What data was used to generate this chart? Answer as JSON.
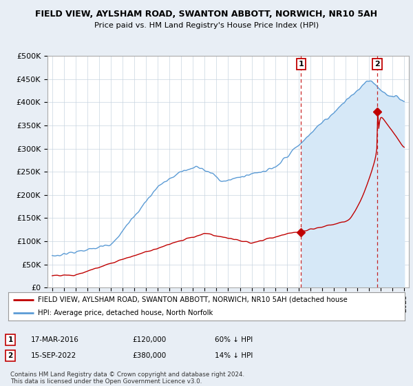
{
  "title": "FIELD VIEW, AYLSHAM ROAD, SWANTON ABBOTT, NORWICH, NR10 5AH",
  "subtitle": "Price paid vs. HM Land Registry's House Price Index (HPI)",
  "ylim": [
    0,
    500000
  ],
  "yticks": [
    0,
    50000,
    100000,
    150000,
    200000,
    250000,
    300000,
    350000,
    400000,
    450000,
    500000
  ],
  "ytick_labels": [
    "£0",
    "£50K",
    "£100K",
    "£150K",
    "£200K",
    "£250K",
    "£300K",
    "£350K",
    "£400K",
    "£450K",
    "£500K"
  ],
  "hpi_color": "#5b9bd5",
  "hpi_fill_color": "#d6e8f7",
  "price_color": "#c00000",
  "background_color": "#e8eef5",
  "plot_bg_color": "#ffffff",
  "grid_color": "#c8d4e0",
  "year1": 2016.21,
  "year2": 2022.71,
  "price1": 120000,
  "price2": 380000,
  "legend_line1": "FIELD VIEW, AYLSHAM ROAD, SWANTON ABBOTT, NORWICH, NR10 5AH (detached house",
  "legend_line2": "HPI: Average price, detached house, North Norfolk",
  "footer": "Contains HM Land Registry data © Crown copyright and database right 2024.\nThis data is licensed under the Open Government Licence v3.0.",
  "xlim_left": 1994.6,
  "xlim_right": 2025.4
}
